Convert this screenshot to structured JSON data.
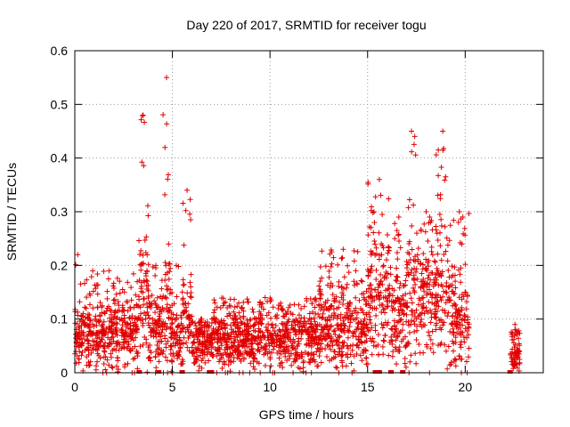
{
  "chart_data": {
    "type": "scatter",
    "title": "Day 220 of 2017, SRMTID for receiver togu",
    "xlabel": "GPS time / hours",
    "ylabel": "SRMTID / TECUs",
    "xlim": [
      0,
      24
    ],
    "ylim": [
      0,
      0.6
    ],
    "x_ticks": [
      0,
      5,
      10,
      15,
      20
    ],
    "y_ticks": [
      0,
      0.1,
      0.2,
      0.3,
      0.4,
      0.5,
      0.6
    ],
    "y_tick_labels": [
      "0",
      "0.1",
      "0.2",
      "0.3",
      "0.4",
      "0.5",
      "0.6"
    ],
    "grid": true,
    "marker": "+",
    "series_color": "#e00000",
    "data_ranges": [
      {
        "x_start": 0.0,
        "x_end": 0.3,
        "y_median": 0.06,
        "y_max": 0.22
      },
      {
        "x_start": 0.3,
        "x_end": 3.2,
        "y_median": 0.07,
        "y_max": 0.19
      },
      {
        "x_start": 3.2,
        "x_end": 3.8,
        "y_median": 0.12,
        "y_max": 0.48
      },
      {
        "x_start": 3.8,
        "x_end": 4.5,
        "y_median": 0.07,
        "y_max": 0.2
      },
      {
        "x_start": 4.5,
        "x_end": 4.9,
        "y_median": 0.12,
        "y_max": 0.55
      },
      {
        "x_start": 4.9,
        "x_end": 5.5,
        "y_median": 0.06,
        "y_max": 0.2
      },
      {
        "x_start": 5.5,
        "x_end": 6.0,
        "y_median": 0.1,
        "y_max": 0.34
      },
      {
        "x_start": 6.0,
        "x_end": 7.0,
        "y_median": 0.05,
        "y_max": 0.1
      },
      {
        "x_start": 7.0,
        "x_end": 12.5,
        "y_median": 0.06,
        "y_max": 0.14
      },
      {
        "x_start": 12.5,
        "x_end": 15.0,
        "y_median": 0.08,
        "y_max": 0.23
      },
      {
        "x_start": 15.0,
        "x_end": 16.2,
        "y_median": 0.13,
        "y_max": 0.36
      },
      {
        "x_start": 16.2,
        "x_end": 17.0,
        "y_median": 0.1,
        "y_max": 0.29
      },
      {
        "x_start": 17.0,
        "x_end": 17.5,
        "y_median": 0.15,
        "y_max": 0.45
      },
      {
        "x_start": 17.5,
        "x_end": 18.5,
        "y_median": 0.14,
        "y_max": 0.3
      },
      {
        "x_start": 18.5,
        "x_end": 19.2,
        "y_median": 0.15,
        "y_max": 0.45
      },
      {
        "x_start": 19.2,
        "x_end": 20.2,
        "y_median": 0.09,
        "y_max": 0.3
      },
      {
        "x_start": 22.3,
        "x_end": 22.8,
        "y_median": 0.03,
        "y_max": 0.09
      }
    ],
    "zero_clusters_x": [
      3.3,
      4.3,
      5.5,
      6.9,
      7.0,
      15.4,
      15.6,
      16.2,
      16.8,
      22.3
    ]
  }
}
